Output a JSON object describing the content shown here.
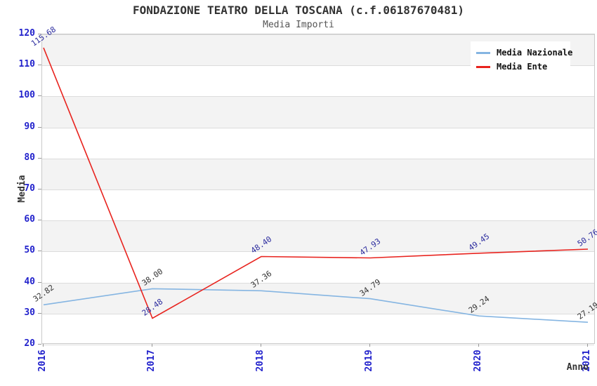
{
  "title": "FONDAZIONE TEATRO DELLA TOSCANA (c.f.06187670481)",
  "subtitle": "Media Importi",
  "chart_data": {
    "type": "line",
    "title": "FONDAZIONE TEATRO DELLA TOSCANA (c.f.06187670481)",
    "subtitle": "Media Importi",
    "xlabel": "Anno",
    "ylabel": "Media",
    "categories": [
      "2016",
      "2017",
      "2018",
      "2019",
      "2020",
      "2021"
    ],
    "ylim": [
      20,
      120
    ],
    "ytick_step": 10,
    "grid": true,
    "band_color": "#f3f3f3",
    "tick_label_color": "#2222cc",
    "legend_position": "top-right",
    "legend_entries": [
      "Media Nazionale",
      "Media Ente"
    ],
    "series": [
      {
        "name": "Media Nazionale",
        "color": "#85b5e2",
        "label_color": "#333333",
        "values": [
          32.82,
          38.0,
          37.36,
          34.79,
          29.24,
          27.19
        ]
      },
      {
        "name": "Media Ente",
        "color": "#e8231e",
        "label_color": "#2b2b9e",
        "values": [
          115.68,
          28.48,
          48.4,
          47.93,
          49.45,
          50.76
        ]
      }
    ]
  }
}
